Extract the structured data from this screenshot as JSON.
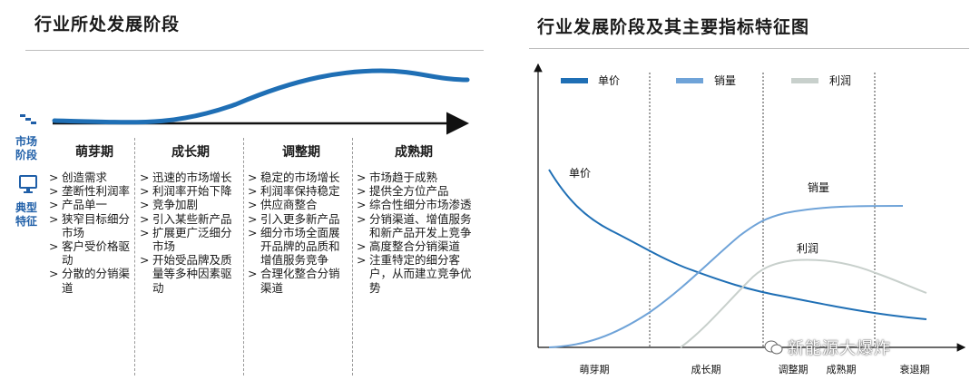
{
  "left": {
    "title": "行业所处发展阶段",
    "side_labels": {
      "market_stage": "市场\n阶段",
      "typical_features": "典型\n特征"
    },
    "stages": [
      {
        "name": "萌芽期",
        "items": [
          "创造需求",
          "垄断性利润率",
          "产品单一",
          "狭窄目标细分市场",
          "客户受价格驱动",
          "分散的分销渠道"
        ]
      },
      {
        "name": "成长期",
        "items": [
          "迅速的市场增长",
          "利润率开始下降",
          "竞争加剧",
          "引入某些新产品",
          "扩展更广泛细分市场",
          "开始受品牌及质量等多种因素驱动"
        ]
      },
      {
        "name": "调整期",
        "items": [
          "稳定的市场增长",
          "利润率保持稳定",
          "供应商整合",
          "引入更多新产品",
          "细分市场全面展开品牌的品质和增值服务竞争",
          "合理化整合分销渠道"
        ]
      },
      {
        "name": "成熟期",
        "items": [
          "市场趋于成熟",
          "提供全方位产品",
          "综合性细分市场渗透",
          "分销渠道、增值服务和新产品开发上竞争",
          "高度整合分销渠道",
          "注重特定的细分客户，从而建立竞争优势"
        ]
      }
    ]
  },
  "right": {
    "title": "行业发展阶段及其主要指标特征图",
    "legend": [
      {
        "label": "单价",
        "color": "#1f6fb5"
      },
      {
        "label": "销量",
        "color": "#6fa3d8"
      },
      {
        "label": "利润",
        "color": "#c8d0cc"
      }
    ],
    "curve_labels": {
      "price": "单价",
      "volume": "销量",
      "profit": "利润"
    },
    "phases": [
      "萌芽期",
      "成长期",
      "调整期",
      "成熟期",
      "衰退期"
    ]
  },
  "watermark": "新能源大爆炸",
  "icons": {
    "market": "steps-icon",
    "feature": "monitor-icon"
  },
  "colors": {
    "accent": "#1f6fb5",
    "curve": "#1f6fb5"
  }
}
